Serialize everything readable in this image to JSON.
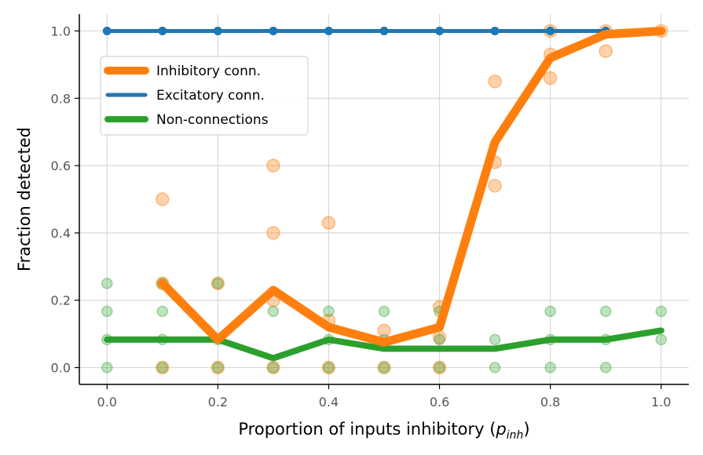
{
  "chart_data": {
    "type": "line",
    "xlabel": "Proportion of inputs inhibitory (",
    "xlabel_symbol": "p",
    "xlabel_subscript": "inh",
    "xlabel_close": ")",
    "ylabel": "Fraction detected",
    "xlim": [
      -0.05,
      1.05
    ],
    "ylim": [
      -0.05,
      1.05
    ],
    "xticks": [
      0.0,
      0.2,
      0.4,
      0.6,
      0.8,
      1.0
    ],
    "yticks": [
      0.0,
      0.2,
      0.4,
      0.6,
      0.8,
      1.0
    ],
    "xtick_labels": [
      "0.0",
      "0.2",
      "0.4",
      "0.6",
      "0.8",
      "1.0"
    ],
    "ytick_labels": [
      "0.0",
      "0.2",
      "0.4",
      "0.6",
      "0.8",
      "1.0"
    ],
    "grid": true,
    "legend_position": "upper-left",
    "series": [
      {
        "name": "Inhibitory conn.",
        "color": "#ff7f0e",
        "x": [
          0.1,
          0.2,
          0.3,
          0.4,
          0.5,
          0.6,
          0.7,
          0.8,
          0.9,
          1.0
        ],
        "values": [
          0.25,
          0.083,
          0.23,
          0.12,
          0.075,
          0.12,
          0.67,
          0.92,
          0.99,
          1.0
        ],
        "scatter": [
          [
            0.1,
            0.5
          ],
          [
            0.1,
            0.25
          ],
          [
            0.1,
            0.0
          ],
          [
            0.2,
            0.25
          ],
          [
            0.2,
            0.0
          ],
          [
            0.3,
            0.6
          ],
          [
            0.3,
            0.4
          ],
          [
            0.3,
            0.2
          ],
          [
            0.3,
            0.0
          ],
          [
            0.4,
            0.43
          ],
          [
            0.4,
            0.14
          ],
          [
            0.4,
            0.0
          ],
          [
            0.5,
            0.11
          ],
          [
            0.5,
            0.0
          ],
          [
            0.6,
            0.18
          ],
          [
            0.6,
            0.09
          ],
          [
            0.6,
            0.0
          ],
          [
            0.7,
            0.85
          ],
          [
            0.7,
            0.61
          ],
          [
            0.7,
            0.54
          ],
          [
            0.8,
            1.0
          ],
          [
            0.8,
            0.93
          ],
          [
            0.8,
            0.86
          ],
          [
            0.9,
            1.0
          ],
          [
            0.9,
            0.94
          ],
          [
            1.0,
            1.0
          ]
        ]
      },
      {
        "name": "Excitatory conn.",
        "color": "#1f77b4",
        "x": [
          0.0,
          0.1,
          0.2,
          0.3,
          0.4,
          0.5,
          0.6,
          0.7,
          0.8,
          0.9
        ],
        "values": [
          1.0,
          1.0,
          1.0,
          1.0,
          1.0,
          1.0,
          1.0,
          1.0,
          1.0,
          1.0
        ]
      },
      {
        "name": "Non-connections",
        "color": "#2ca02c",
        "x": [
          0.0,
          0.1,
          0.2,
          0.3,
          0.4,
          0.5,
          0.6,
          0.7,
          0.8,
          0.9,
          1.0
        ],
        "values": [
          0.083,
          0.083,
          0.083,
          0.028,
          0.083,
          0.056,
          0.056,
          0.056,
          0.083,
          0.083,
          0.11
        ],
        "scatter": [
          [
            0.0,
            0.25
          ],
          [
            0.0,
            0.167
          ],
          [
            0.0,
            0.083
          ],
          [
            0.0,
            0.0
          ],
          [
            0.1,
            0.25
          ],
          [
            0.1,
            0.167
          ],
          [
            0.1,
            0.083
          ],
          [
            0.1,
            0.0
          ],
          [
            0.2,
            0.25
          ],
          [
            0.2,
            0.083
          ],
          [
            0.2,
            0.0
          ],
          [
            0.3,
            0.167
          ],
          [
            0.3,
            0.0
          ],
          [
            0.4,
            0.167
          ],
          [
            0.4,
            0.083
          ],
          [
            0.4,
            0.0
          ],
          [
            0.5,
            0.167
          ],
          [
            0.5,
            0.083
          ],
          [
            0.5,
            0.0
          ],
          [
            0.6,
            0.167
          ],
          [
            0.6,
            0.083
          ],
          [
            0.6,
            0.0
          ],
          [
            0.7,
            0.083
          ],
          [
            0.7,
            0.0
          ],
          [
            0.8,
            0.167
          ],
          [
            0.8,
            0.083
          ],
          [
            0.8,
            0.0
          ],
          [
            0.9,
            0.167
          ],
          [
            0.9,
            0.083
          ],
          [
            0.9,
            0.0
          ],
          [
            1.0,
            0.167
          ],
          [
            1.0,
            0.083
          ]
        ]
      }
    ]
  }
}
